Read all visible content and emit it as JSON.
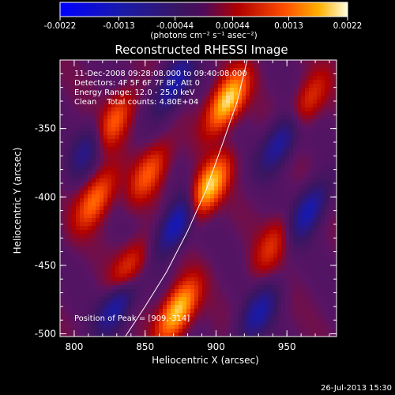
{
  "colorbar": {
    "tick_labels": [
      "-0.0022",
      "-0.0013",
      "-0.00044",
      "0.00044",
      "0.0013",
      "0.0022"
    ],
    "tick_values": [
      -0.0022,
      -0.0013,
      -0.00044,
      0.00044,
      0.0013,
      0.0022
    ],
    "unit": "(photons cm⁻² s⁻¹ asec⁻²)",
    "range": [
      -0.0022,
      0.0022
    ]
  },
  "info": {
    "line1": "11-Dec-2008 09:28:08.000 to 09:40:08.000",
    "line2": "Detectors: 4F 5F 6F 7F 8F, Att 0",
    "line3": "Energy Range: 12.0 - 25.0 keV",
    "line4": "Clean    Total counts: 4.80E+04",
    "peak": "Position of Peak = [909,-314]"
  },
  "footer": {
    "timestamp": "26-Jul-2013 15:30"
  },
  "chart_data": {
    "type": "heatmap",
    "title": "Reconstructed RHESSI Image",
    "xlabel": "Heliocentric X (arcsec)",
    "ylabel": "Heliocentric Y (arcsec)",
    "xlim": [
      790,
      985
    ],
    "ylim": [
      -502,
      -300
    ],
    "x_ticks": [
      800,
      850,
      900,
      950
    ],
    "x_tick_labels": [
      "800",
      "850",
      "900",
      "950"
    ],
    "y_ticks": [
      -350,
      -400,
      -450,
      -500
    ],
    "y_tick_labels": [
      "-350",
      "-400",
      "-450",
      "-500"
    ],
    "limb_curve": [
      [
        836,
        -502
      ],
      [
        850,
        -480
      ],
      [
        865,
        -455
      ],
      [
        880,
        -425
      ],
      [
        893,
        -395
      ],
      [
        905,
        -360
      ],
      [
        915,
        -330
      ],
      [
        922,
        -300
      ]
    ],
    "bright_sources": [
      {
        "x": 908,
        "y": -330,
        "level": 0.95
      },
      {
        "x": 895,
        "y": -393,
        "level": 0.9
      },
      {
        "x": 873,
        "y": -483,
        "level": 0.92
      },
      {
        "x": 828,
        "y": -345,
        "level": 0.55
      },
      {
        "x": 815,
        "y": -402,
        "level": 0.6
      },
      {
        "x": 853,
        "y": -382,
        "level": 0.5
      },
      {
        "x": 838,
        "y": -453,
        "level": 0.45
      },
      {
        "x": 965,
        "y": -330,
        "level": 0.4
      },
      {
        "x": 940,
        "y": -435,
        "level": 0.35
      }
    ],
    "dark_sources": [
      {
        "x": 870,
        "y": -318,
        "level": -0.6
      },
      {
        "x": 872,
        "y": -420,
        "level": -0.7
      },
      {
        "x": 830,
        "y": -478,
        "level": -0.6
      },
      {
        "x": 945,
        "y": -360,
        "level": -0.55
      },
      {
        "x": 965,
        "y": -410,
        "level": -0.6
      },
      {
        "x": 810,
        "y": -365,
        "level": -0.4
      },
      {
        "x": 930,
        "y": -485,
        "level": -0.5
      }
    ]
  }
}
